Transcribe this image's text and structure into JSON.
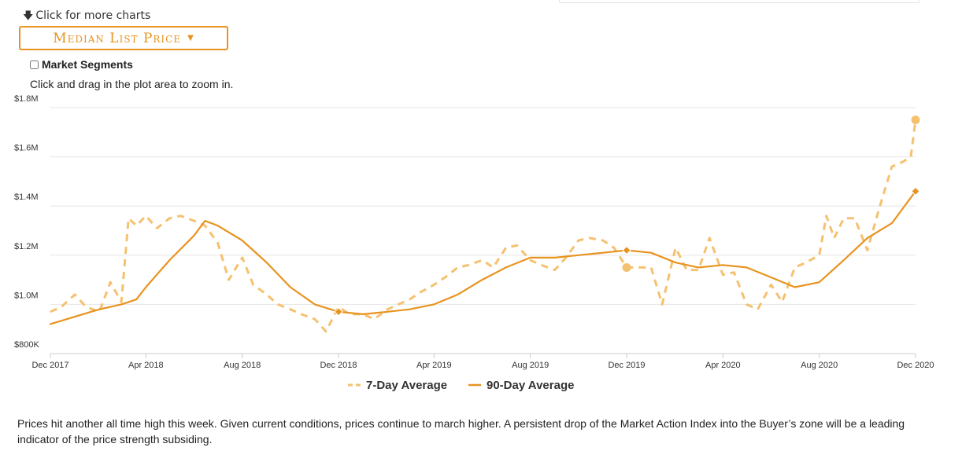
{
  "header": {
    "more_charts_label": "Click for more charts",
    "dropdown_label": "Median List Price",
    "segments_label": "Market Segments",
    "zoom_hint": "Click and drag in the plot area to zoom in."
  },
  "chart_data": {
    "type": "line",
    "title": "",
    "xlabel": "",
    "ylabel": "",
    "x_range": [
      "2017-12-01",
      "2020-12-01"
    ],
    "xticks": [
      "Dec 2017",
      "Apr 2018",
      "Aug 2018",
      "Dec 2018",
      "Apr 2019",
      "Aug 2019",
      "Dec 2019",
      "Apr 2020",
      "Aug 2020",
      "Dec 2020"
    ],
    "ylim": [
      800000,
      1800000
    ],
    "yticks": [
      "$800K",
      "$1.0M",
      "$1.2M",
      "$1.4M",
      "$1.6M",
      "$1.8M"
    ],
    "grid": "horizontal",
    "legend_position": "bottom-center",
    "series": [
      {
        "name": "7-Day Average",
        "color": "#f5c170",
        "style": "dashed",
        "marker_on_last": "circle",
        "points": [
          [
            "2017-12-01",
            970000
          ],
          [
            "2017-12-15",
            990000
          ],
          [
            "2018-01-01",
            1040000
          ],
          [
            "2018-01-15",
            990000
          ],
          [
            "2018-02-01",
            970000
          ],
          [
            "2018-02-15",
            1090000
          ],
          [
            "2018-03-01",
            1010000
          ],
          [
            "2018-03-10",
            1350000
          ],
          [
            "2018-03-20",
            1320000
          ],
          [
            "2018-04-01",
            1360000
          ],
          [
            "2018-04-15",
            1310000
          ],
          [
            "2018-05-01",
            1350000
          ],
          [
            "2018-05-15",
            1360000
          ],
          [
            "2018-06-01",
            1340000
          ],
          [
            "2018-06-15",
            1320000
          ],
          [
            "2018-07-01",
            1250000
          ],
          [
            "2018-07-15",
            1100000
          ],
          [
            "2018-08-01",
            1190000
          ],
          [
            "2018-08-15",
            1080000
          ],
          [
            "2018-09-01",
            1040000
          ],
          [
            "2018-09-15",
            1000000
          ],
          [
            "2018-10-01",
            980000
          ],
          [
            "2018-10-15",
            960000
          ],
          [
            "2018-11-01",
            940000
          ],
          [
            "2018-11-15",
            890000
          ],
          [
            "2018-12-01",
            990000
          ],
          [
            "2018-12-15",
            960000
          ],
          [
            "2019-01-01",
            960000
          ],
          [
            "2019-01-15",
            940000
          ],
          [
            "2019-02-01",
            980000
          ],
          [
            "2019-02-15",
            1000000
          ],
          [
            "2019-03-01",
            1020000
          ],
          [
            "2019-03-15",
            1050000
          ],
          [
            "2019-04-01",
            1080000
          ],
          [
            "2019-04-15",
            1110000
          ],
          [
            "2019-05-01",
            1150000
          ],
          [
            "2019-05-15",
            1160000
          ],
          [
            "2019-06-01",
            1180000
          ],
          [
            "2019-06-15",
            1150000
          ],
          [
            "2019-07-01",
            1230000
          ],
          [
            "2019-07-15",
            1240000
          ],
          [
            "2019-08-01",
            1180000
          ],
          [
            "2019-08-15",
            1160000
          ],
          [
            "2019-09-01",
            1140000
          ],
          [
            "2019-09-15",
            1190000
          ],
          [
            "2019-10-01",
            1260000
          ],
          [
            "2019-10-15",
            1270000
          ],
          [
            "2019-11-01",
            1260000
          ],
          [
            "2019-11-15",
            1230000
          ],
          [
            "2019-12-01",
            1150000
          ],
          [
            "2019-12-15",
            1150000
          ],
          [
            "2020-01-01",
            1150000
          ],
          [
            "2020-01-15",
            1000000
          ],
          [
            "2020-02-01",
            1230000
          ],
          [
            "2020-02-15",
            1140000
          ],
          [
            "2020-03-01",
            1140000
          ],
          [
            "2020-03-15",
            1270000
          ],
          [
            "2020-04-01",
            1120000
          ],
          [
            "2020-04-15",
            1130000
          ],
          [
            "2020-05-01",
            1000000
          ],
          [
            "2020-05-15",
            980000
          ],
          [
            "2020-06-01",
            1080000
          ],
          [
            "2020-06-15",
            1010000
          ],
          [
            "2020-07-01",
            1150000
          ],
          [
            "2020-07-15",
            1170000
          ],
          [
            "2020-08-01",
            1200000
          ],
          [
            "2020-08-10",
            1360000
          ],
          [
            "2020-08-20",
            1270000
          ],
          [
            "2020-09-01",
            1350000
          ],
          [
            "2020-09-15",
            1350000
          ],
          [
            "2020-10-01",
            1220000
          ],
          [
            "2020-10-15",
            1380000
          ],
          [
            "2020-11-01",
            1560000
          ],
          [
            "2020-11-15",
            1580000
          ],
          [
            "2020-11-25",
            1600000
          ],
          [
            "2020-12-01",
            1750000
          ]
        ]
      },
      {
        "name": "90-Day Average",
        "color": "#e8931f",
        "style": "solid",
        "markers": "diamond",
        "points": [
          [
            "2017-12-01",
            920000
          ],
          [
            "2018-01-01",
            950000
          ],
          [
            "2018-02-01",
            980000
          ],
          [
            "2018-03-01",
            1000000
          ],
          [
            "2018-03-20",
            1020000
          ],
          [
            "2018-04-01",
            1070000
          ],
          [
            "2018-05-01",
            1180000
          ],
          [
            "2018-06-01",
            1280000
          ],
          [
            "2018-06-15",
            1340000
          ],
          [
            "2018-07-01",
            1320000
          ],
          [
            "2018-08-01",
            1260000
          ],
          [
            "2018-09-01",
            1170000
          ],
          [
            "2018-10-01",
            1070000
          ],
          [
            "2018-11-01",
            1000000
          ],
          [
            "2018-12-01",
            970000
          ],
          [
            "2019-01-01",
            960000
          ],
          [
            "2019-02-01",
            970000
          ],
          [
            "2019-03-01",
            980000
          ],
          [
            "2019-04-01",
            1000000
          ],
          [
            "2019-05-01",
            1040000
          ],
          [
            "2019-06-01",
            1100000
          ],
          [
            "2019-07-01",
            1150000
          ],
          [
            "2019-08-01",
            1190000
          ],
          [
            "2019-09-01",
            1190000
          ],
          [
            "2019-10-01",
            1200000
          ],
          [
            "2019-11-01",
            1210000
          ],
          [
            "2019-12-01",
            1220000
          ],
          [
            "2020-01-01",
            1210000
          ],
          [
            "2020-02-01",
            1170000
          ],
          [
            "2020-03-01",
            1150000
          ],
          [
            "2020-04-01",
            1160000
          ],
          [
            "2020-05-01",
            1150000
          ],
          [
            "2020-06-01",
            1110000
          ],
          [
            "2020-07-01",
            1070000
          ],
          [
            "2020-08-01",
            1090000
          ],
          [
            "2020-09-01",
            1180000
          ],
          [
            "2020-10-01",
            1270000
          ],
          [
            "2020-11-01",
            1330000
          ],
          [
            "2020-12-01",
            1460000
          ]
        ],
        "diamond_points": [
          [
            "2018-12-01",
            970000
          ],
          [
            "2019-12-01",
            1220000
          ],
          [
            "2020-12-01",
            1460000
          ]
        ]
      }
    ]
  },
  "caption": "Prices hit another all time high this week. Given current conditions, prices continue to march higher. A persistent drop of the Market Action Index into the Buyer’s zone will be a leading indicator of the price strength subsiding."
}
